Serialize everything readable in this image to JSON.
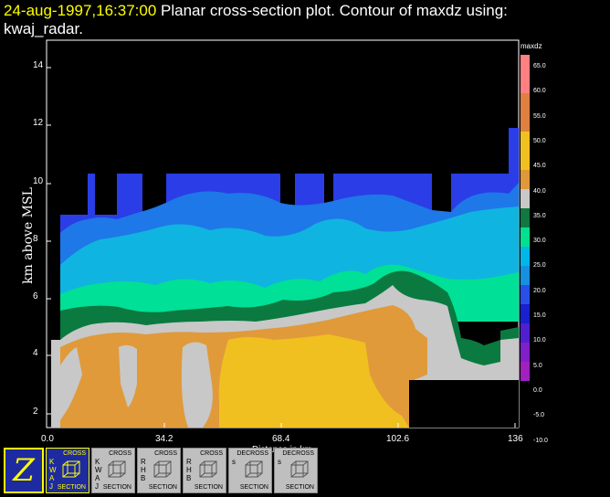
{
  "header": {
    "timestamp": "24-aug-1997,16:37:00",
    "title_rest": "  Planar cross-section plot.  Contour of maxdz using:",
    "title_line2": "kwaj_radar."
  },
  "axes": {
    "ylabel": "km above MSL",
    "xlabel": "Distance in km",
    "yticks": [
      "14",
      "12",
      "10",
      "8",
      "6",
      "4",
      "2"
    ],
    "xticks": [
      "0.0",
      "34.2",
      "68.4",
      "102.6",
      "136"
    ]
  },
  "legend": {
    "title": "maxdz",
    "labels": [
      "65.0",
      "60.0",
      "55.0",
      "50.0",
      "45.0",
      "40.0",
      "35.0",
      "30.0",
      "25.0",
      "20.0",
      "15.0",
      "10.0",
      "5.0",
      "0.0",
      "-5.0",
      "-10.0"
    ],
    "colors": [
      "#ff8080",
      "#ff8080",
      "#e08040",
      "#e08040",
      "#f0c020",
      "#f0c020",
      "#e09838",
      "#c8c8c8",
      "#107840",
      "#00e090",
      "#00b8e8",
      "#1890e0",
      "#2850e8",
      "#1820d0",
      "#5020d0",
      "#8020c8",
      "#a020c0"
    ]
  },
  "toolbar": {
    "z_label": "Z",
    "buttons": [
      {
        "side": "KWAJ",
        "t1": "CROSS",
        "t2": "SECTION",
        "active": true
      },
      {
        "side": "KWAJ",
        "t1": "CROSS",
        "t2": "SECTION",
        "active": false
      },
      {
        "side": "RHB",
        "t1": "CROSS",
        "t2": "SECTION",
        "active": false
      },
      {
        "side": "RHB",
        "t1": "CROSS",
        "t2": "SECTION",
        "active": false
      },
      {
        "side": "s",
        "t1": "DECROSS",
        "t2": "SECTION",
        "active": false
      },
      {
        "side": "s",
        "t1": "DECROSS",
        "t2": "SECTION",
        "active": false
      }
    ]
  },
  "chart_data": {
    "type": "heatmap",
    "title": "Contour of maxdz using: kwaj_radar.",
    "xlabel": "Distance in km",
    "ylabel": "km above MSL",
    "xlim": [
      0.0,
      136
    ],
    "ylim": [
      1.5,
      14.8
    ],
    "colorbar_label": "maxdz",
    "colorbar_range": [
      -10.0,
      65.0
    ]
  }
}
